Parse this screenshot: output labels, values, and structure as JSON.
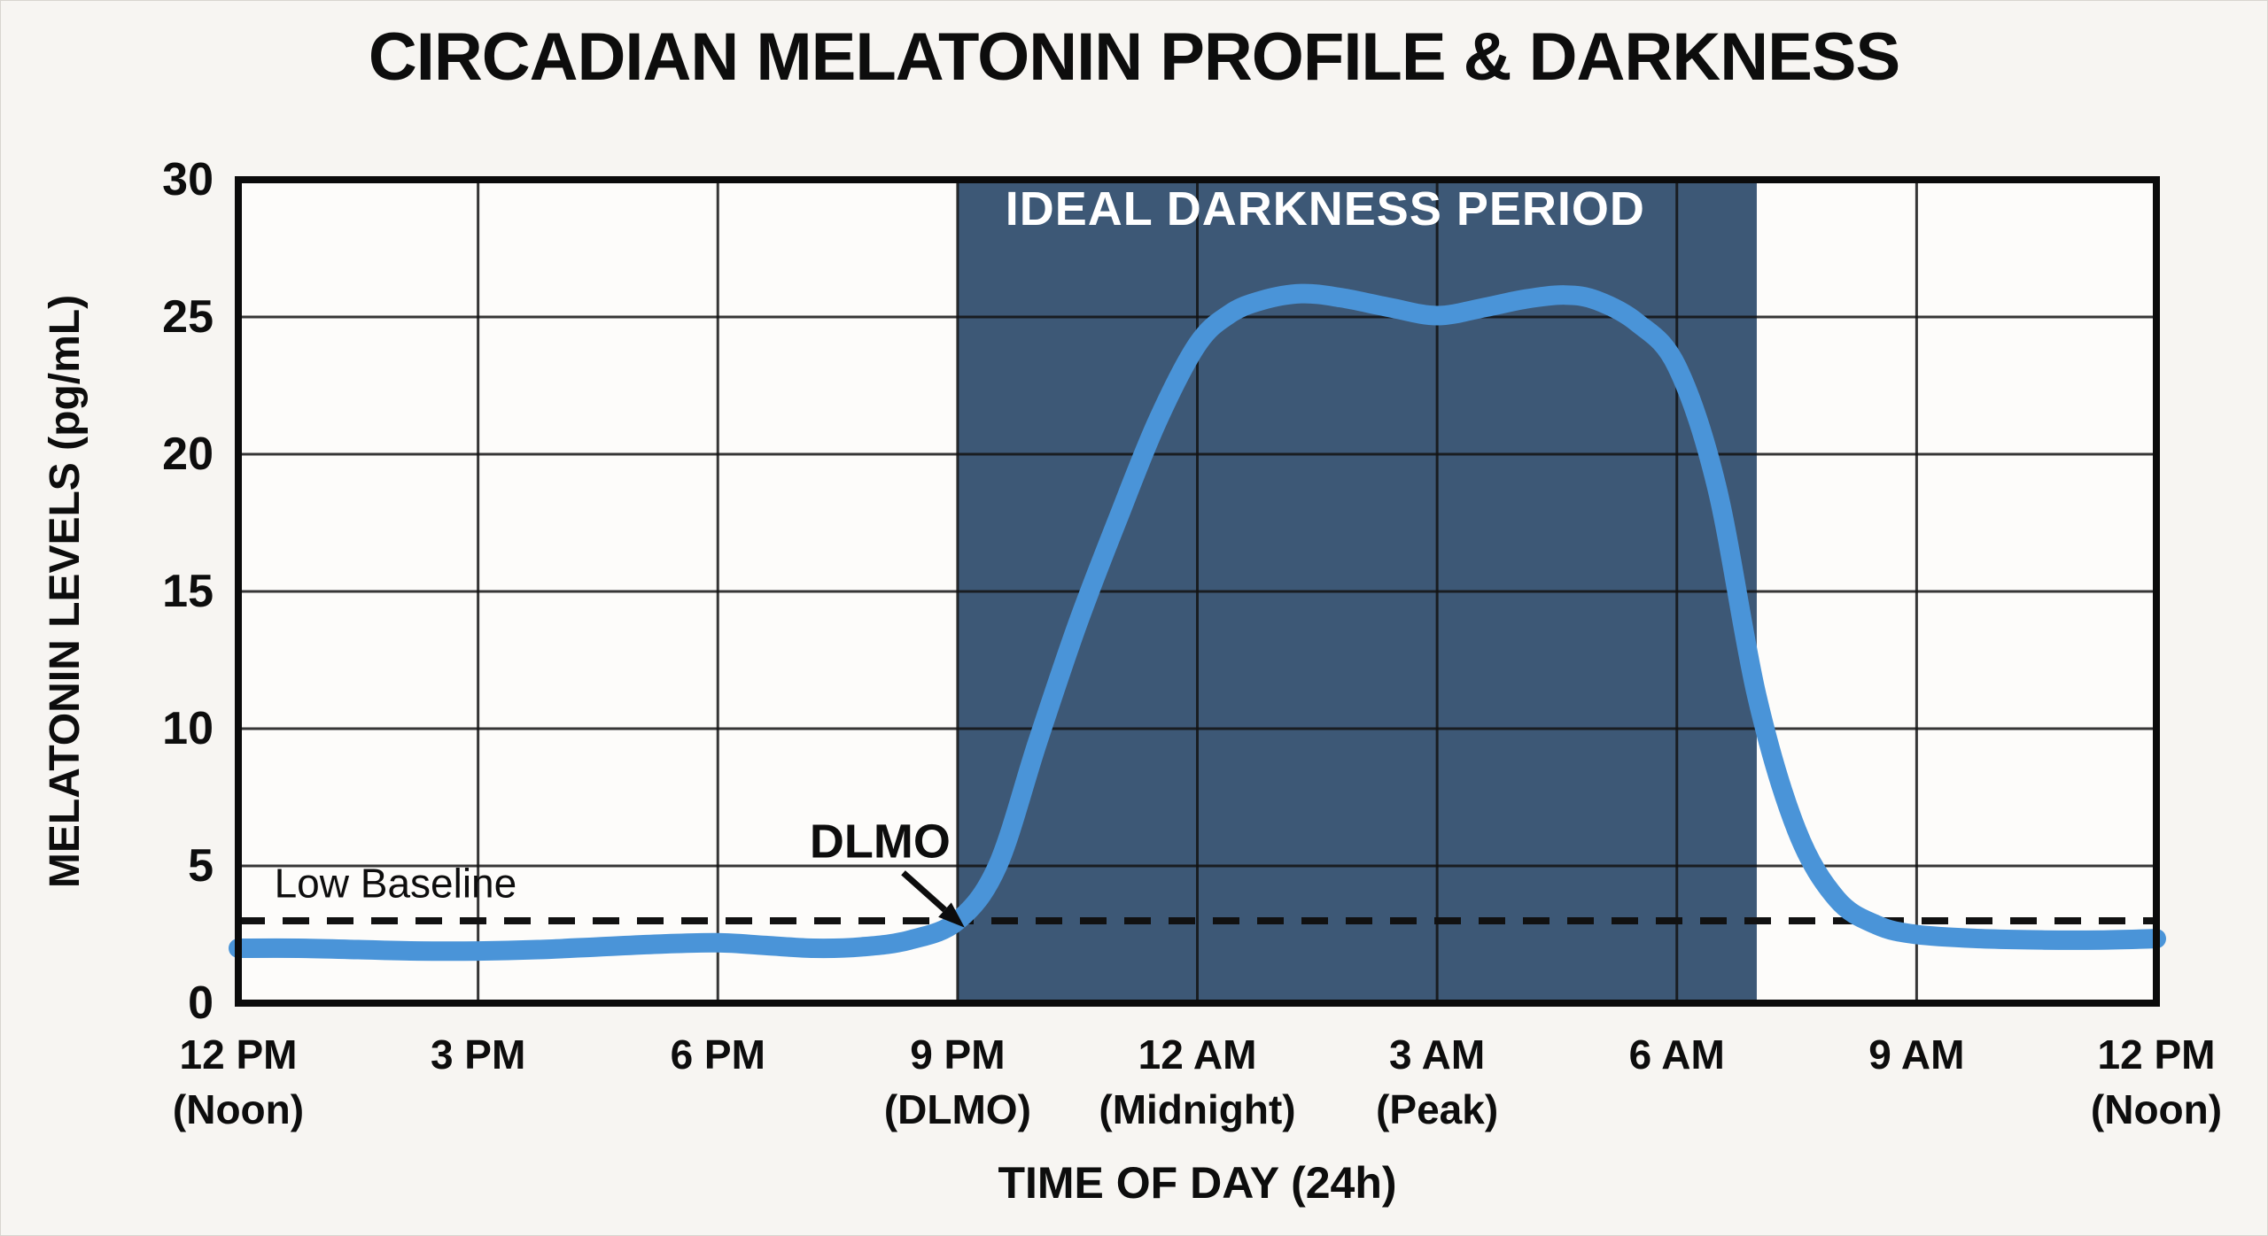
{
  "title": "CIRCADIAN MELATONIN PROFILE & DARKNESS",
  "chart_data": {
    "type": "line",
    "title": "CIRCADIAN MELATONIN PROFILE & DARKNESS",
    "xlabel": "TIME OF DAY (24h)",
    "ylabel": "MELATONIN LEVELS (pg/mL)",
    "x_unit_note": "hours after 12 PM (noon)",
    "xlim": [
      0,
      24
    ],
    "ylim": [
      0,
      30
    ],
    "grid": true,
    "y_ticks": [
      0,
      5,
      10,
      15,
      20,
      25,
      30
    ],
    "x_ticks": [
      {
        "h": 0,
        "label": "12 PM",
        "sublabel": "(Noon)"
      },
      {
        "h": 3,
        "label": "3 PM",
        "sublabel": ""
      },
      {
        "h": 6,
        "label": "6 PM",
        "sublabel": ""
      },
      {
        "h": 9,
        "label": "9 PM",
        "sublabel": "(DLMO)"
      },
      {
        "h": 12,
        "label": "12 AM",
        "sublabel": "(Midnight)"
      },
      {
        "h": 15,
        "label": "3 AM",
        "sublabel": "(Peak)"
      },
      {
        "h": 18,
        "label": "6 AM",
        "sublabel": ""
      },
      {
        "h": 21,
        "label": "9 AM",
        "sublabel": ""
      },
      {
        "h": 24,
        "label": "12 PM",
        "sublabel": "(Noon)"
      }
    ],
    "series": [
      {
        "name": "Melatonin level (pg/mL)",
        "points": [
          [
            0,
            2.0
          ],
          [
            0.75,
            2.0
          ],
          [
            1.5,
            1.95
          ],
          [
            2.25,
            1.9
          ],
          [
            3,
            1.9
          ],
          [
            3.75,
            1.95
          ],
          [
            4.5,
            2.05
          ],
          [
            5.25,
            2.15
          ],
          [
            6,
            2.2
          ],
          [
            6.6,
            2.1
          ],
          [
            7.2,
            2.0
          ],
          [
            7.8,
            2.05
          ],
          [
            8.4,
            2.3
          ],
          [
            9,
            3.0
          ],
          [
            9.5,
            5.0
          ],
          [
            10,
            9.5
          ],
          [
            10.5,
            13.8
          ],
          [
            11,
            17.6
          ],
          [
            11.5,
            21.2
          ],
          [
            12,
            24.0
          ],
          [
            12.4,
            25.1
          ],
          [
            12.8,
            25.6
          ],
          [
            13.3,
            25.85
          ],
          [
            13.8,
            25.7
          ],
          [
            14.4,
            25.35
          ],
          [
            15,
            25.05
          ],
          [
            15.6,
            25.35
          ],
          [
            16.1,
            25.65
          ],
          [
            16.6,
            25.8
          ],
          [
            17,
            25.6
          ],
          [
            17.5,
            24.8
          ],
          [
            18,
            23.2
          ],
          [
            18.5,
            18.8
          ],
          [
            19,
            11.2
          ],
          [
            19.5,
            6.3
          ],
          [
            20,
            3.8
          ],
          [
            20.5,
            2.85
          ],
          [
            21,
            2.5
          ],
          [
            21.8,
            2.35
          ],
          [
            22.6,
            2.3
          ],
          [
            23.3,
            2.3
          ],
          [
            24,
            2.35
          ]
        ]
      }
    ],
    "baseline": {
      "value": 3,
      "label": "Low Baseline",
      "style": "dashed",
      "label_pos": {
        "h": 0.45,
        "v": 3.85
      }
    },
    "darkness_region": {
      "from_h": 9,
      "to_h": 19,
      "from_time": "9 PM",
      "to_time": "7 AM",
      "label": "IDEAL DARKNESS PERIOD",
      "label_pos": {
        "h": 13.6,
        "v": 28.35
      }
    },
    "annotations": [
      {
        "text": "DLMO",
        "text_pos": {
          "h": 8.03,
          "v": 5.3
        },
        "arrow_from": {
          "h": 8.32,
          "v": 4.75
        },
        "arrow_to": {
          "h": 8.84,
          "v": 3.4
        },
        "points_at": {
          "h": 9,
          "v": 3
        }
      }
    ],
    "colors": {
      "curve": "#4a94d8",
      "darkness_fill": "#3d5876",
      "gridline": "#131313",
      "frame": "#0b0b0b",
      "dashed_line": "#111111",
      "text": "#0d0d0d",
      "darkness_label_text": "#ffffff",
      "plot_bg": "#fdfcfa",
      "page_bg": "#f7f5f2"
    }
  }
}
